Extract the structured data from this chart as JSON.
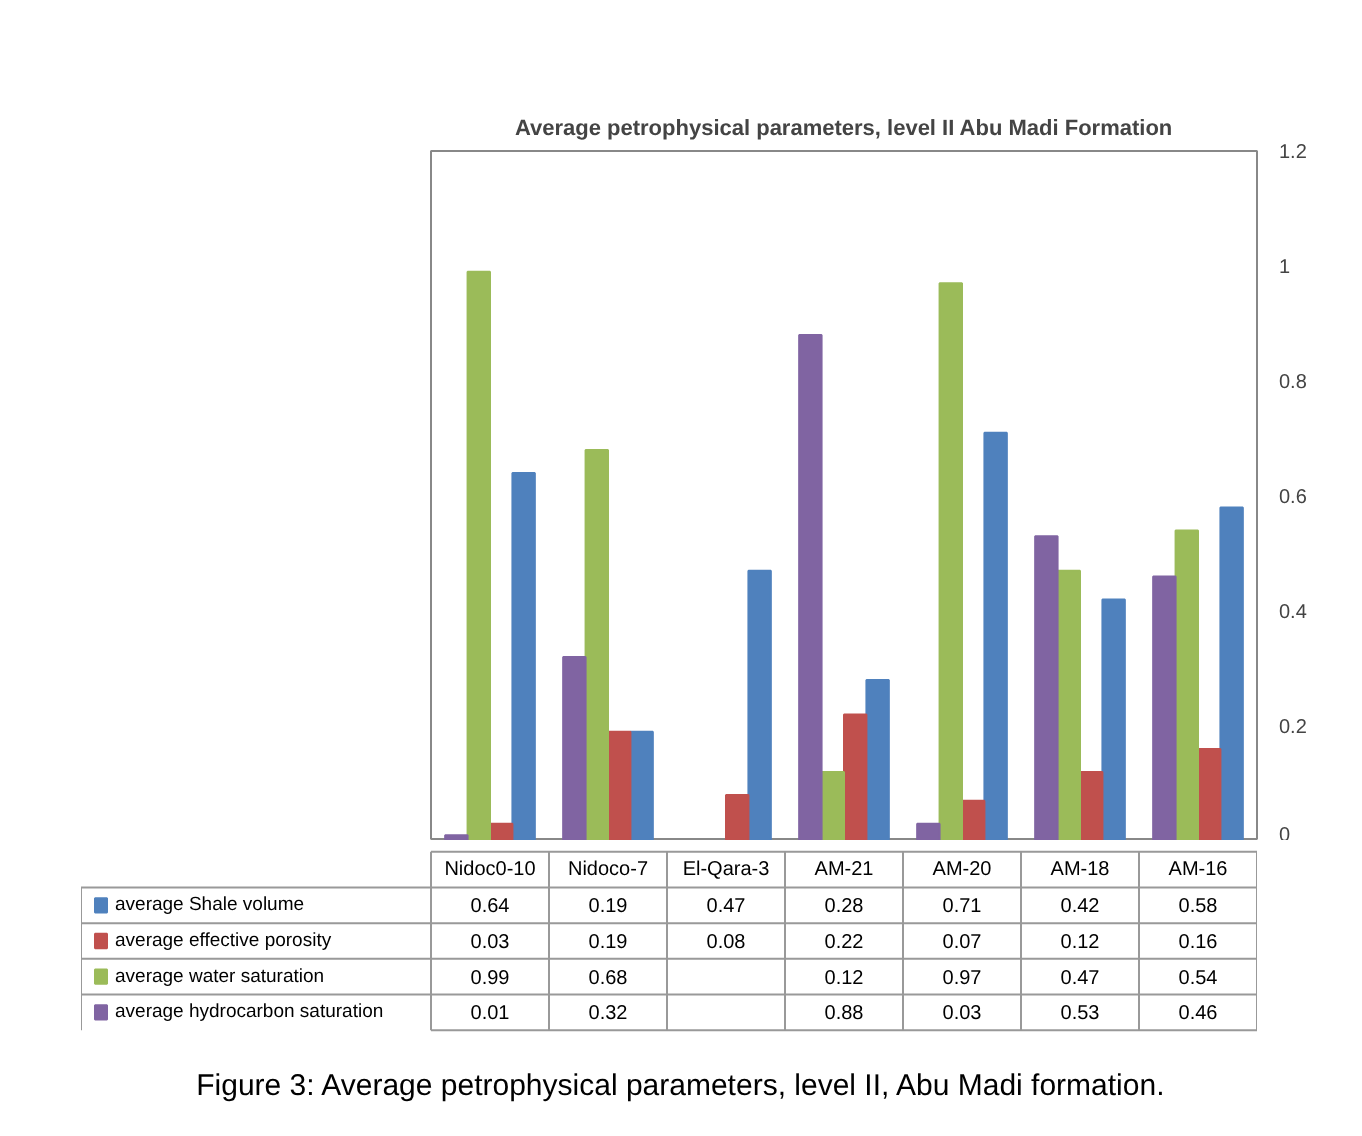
{
  "chart_data": {
    "type": "bar",
    "title": "Average petrophysical parameters, level II Abu Madi Formation",
    "categories": [
      "Nidoc0-10",
      "Nidoco-7",
      "El-Qara-3",
      "AM-21",
      "AM-20",
      "AM-18",
      "AM-16"
    ],
    "series": [
      {
        "name": "average Shale volume",
        "color": "#4f81bd",
        "values": [
          0.64,
          0.19,
          0.47,
          0.28,
          0.71,
          0.42,
          0.58
        ]
      },
      {
        "name": "average effective porosity",
        "color": "#c0504d",
        "values": [
          0.03,
          0.19,
          0.08,
          0.22,
          0.07,
          0.12,
          0.16
        ]
      },
      {
        "name": "average water saturation",
        "color": "#9bbb59",
        "values": [
          0.99,
          0.68,
          null,
          0.12,
          0.97,
          0.47,
          0.54
        ]
      },
      {
        "name": "average hydrocarbon saturation",
        "color": "#8064a2",
        "values": [
          0.01,
          0.32,
          null,
          0.88,
          0.03,
          0.53,
          0.46
        ]
      }
    ],
    "ylim": [
      0,
      1.2
    ],
    "yticks": [
      0,
      {
        "value": 0.2,
        "label": "0.2"
      },
      {
        "value": 0.4,
        "label": "0.4"
      },
      {
        "value": 0.6,
        "label": "0.6"
      },
      {
        "value": 0.8,
        "label": "0.8"
      },
      1,
      {
        "value": 1.2,
        "label": "1.2"
      }
    ],
    "grid": false,
    "legend": "bottom",
    "data_labels": true,
    "annotations": [
      "Figure 3: Average petrophysical parameters, level II, Abu Madi formation."
    ]
  }
}
